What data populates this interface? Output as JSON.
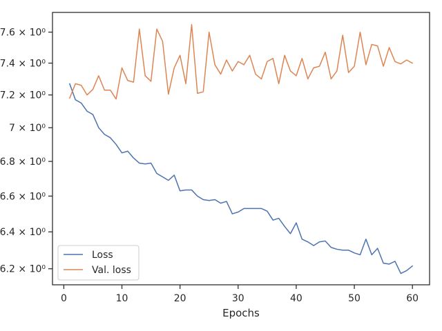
{
  "chart_data": {
    "type": "line",
    "xlabel": "Epochs",
    "ylabel": "",
    "title": "",
    "yscale": "log",
    "xlim": [
      -1.95,
      62.95
    ],
    "ylim": [
      6.115,
      7.73
    ],
    "xticks": [
      0,
      10,
      20,
      30,
      40,
      50,
      60
    ],
    "yticks": [
      {
        "value": 6.2,
        "label": "6.2 × 10⁰"
      },
      {
        "value": 6.4,
        "label": "6.4 × 10⁰"
      },
      {
        "value": 6.6,
        "label": "6.6 × 10⁰"
      },
      {
        "value": 6.8,
        "label": "6.8 × 10⁰"
      },
      {
        "value": 7.0,
        "label": "7 × 10⁰"
      },
      {
        "value": 7.2,
        "label": "7.2 × 10⁰"
      },
      {
        "value": 7.4,
        "label": "7.4 × 10⁰"
      },
      {
        "value": 7.6,
        "label": "7.6 × 10⁰"
      }
    ],
    "grid": false,
    "legend_position": "lower-left",
    "x": [
      1,
      2,
      3,
      4,
      5,
      6,
      7,
      8,
      9,
      10,
      11,
      12,
      13,
      14,
      15,
      16,
      17,
      18,
      19,
      20,
      21,
      22,
      23,
      24,
      25,
      26,
      27,
      28,
      29,
      30,
      31,
      32,
      33,
      34,
      35,
      36,
      37,
      38,
      39,
      40,
      41,
      42,
      43,
      44,
      45,
      46,
      47,
      48,
      49,
      50,
      51,
      52,
      53,
      54,
      55,
      56,
      57,
      58,
      59,
      60
    ],
    "series": [
      {
        "name": "Loss",
        "color": "#4c72b0",
        "values": [
          7.27,
          7.17,
          7.15,
          7.1,
          7.08,
          7.0,
          6.96,
          6.94,
          6.9,
          6.85,
          6.86,
          6.82,
          6.79,
          6.785,
          6.79,
          6.73,
          6.71,
          6.69,
          6.72,
          6.63,
          6.635,
          6.635,
          6.6,
          6.58,
          6.575,
          6.58,
          6.56,
          6.57,
          6.5,
          6.51,
          6.53,
          6.53,
          6.53,
          6.53,
          6.515,
          6.465,
          6.475,
          6.43,
          6.39,
          6.45,
          6.36,
          6.345,
          6.325,
          6.345,
          6.35,
          6.315,
          6.305,
          6.3,
          6.3,
          6.285,
          6.275,
          6.36,
          6.275,
          6.31,
          6.23,
          6.225,
          6.24,
          6.175,
          6.19,
          6.215
        ]
      },
      {
        "name": "Val. loss",
        "color": "#dd8452",
        "values": [
          7.18,
          7.27,
          7.26,
          7.2,
          7.235,
          7.32,
          7.23,
          7.23,
          7.175,
          7.37,
          7.29,
          7.28,
          7.62,
          7.32,
          7.285,
          7.62,
          7.54,
          7.205,
          7.37,
          7.45,
          7.27,
          7.65,
          7.21,
          7.22,
          7.6,
          7.39,
          7.33,
          7.42,
          7.35,
          7.41,
          7.39,
          7.45,
          7.33,
          7.3,
          7.41,
          7.43,
          7.27,
          7.45,
          7.35,
          7.32,
          7.43,
          7.3,
          7.37,
          7.38,
          7.47,
          7.3,
          7.35,
          7.58,
          7.34,
          7.38,
          7.6,
          7.39,
          7.52,
          7.51,
          7.38,
          7.5,
          7.41,
          7.395,
          7.42,
          7.4
        ]
      }
    ]
  }
}
